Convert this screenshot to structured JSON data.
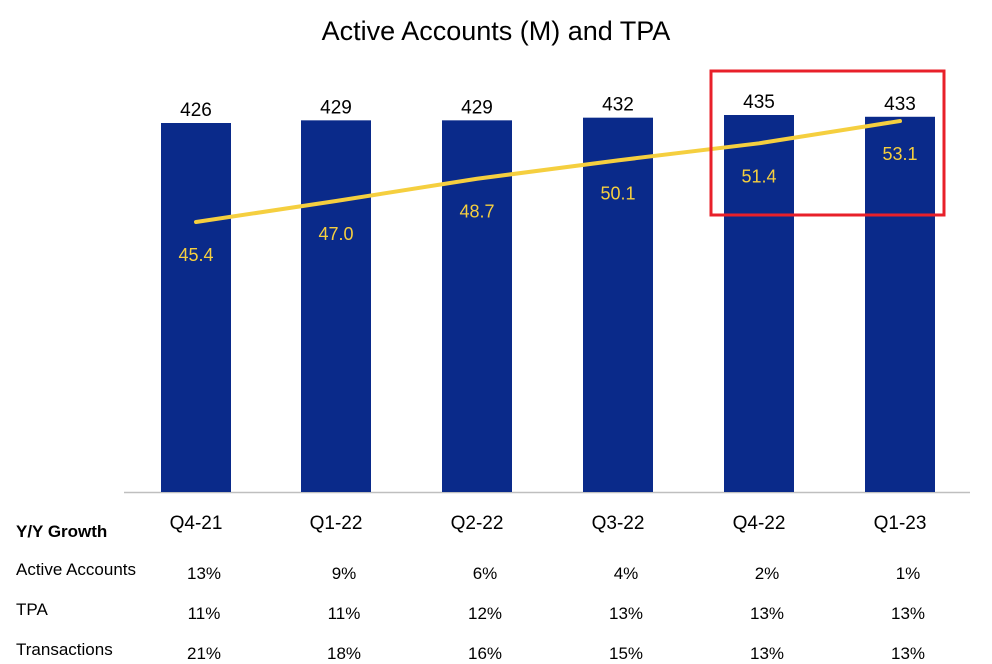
{
  "chart_data": {
    "type": "bar",
    "title": "Active Accounts (M) and TPA",
    "categories": [
      "Q4-21",
      "Q1-22",
      "Q2-22",
      "Q3-22",
      "Q4-22",
      "Q1-23"
    ],
    "series": [
      {
        "name": "Active Accounts (M)",
        "kind": "bar",
        "values": [
          426,
          429,
          429,
          432,
          435,
          433
        ]
      },
      {
        "name": "TPA",
        "kind": "line",
        "values": [
          45.4,
          47.0,
          48.7,
          50.1,
          51.4,
          53.1
        ]
      }
    ],
    "value_labels": {
      "bars": [
        "426",
        "429",
        "429",
        "432",
        "435",
        "433"
      ],
      "line": [
        "45.4",
        "47.0",
        "48.7",
        "50.1",
        "51.4",
        "53.1"
      ]
    },
    "highlight": {
      "categories": [
        "Q4-22",
        "Q1-23"
      ],
      "color": "#E8202A"
    },
    "colors": {
      "bar": "#0A2A8A",
      "line": "#F5CF3F"
    },
    "xlabel": "",
    "ylabel": ""
  },
  "growth_table": {
    "title": "Y/Y Growth",
    "rows": [
      {
        "label": "Active Accounts",
        "values": [
          "13%",
          "9%",
          "6%",
          "4%",
          "2%",
          "1%"
        ]
      },
      {
        "label": "TPA",
        "values": [
          "11%",
          "11%",
          "12%",
          "13%",
          "13%",
          "13%"
        ]
      },
      {
        "label": "Transactions",
        "values": [
          "21%",
          "18%",
          "16%",
          "15%",
          "13%",
          "13%"
        ]
      }
    ]
  }
}
